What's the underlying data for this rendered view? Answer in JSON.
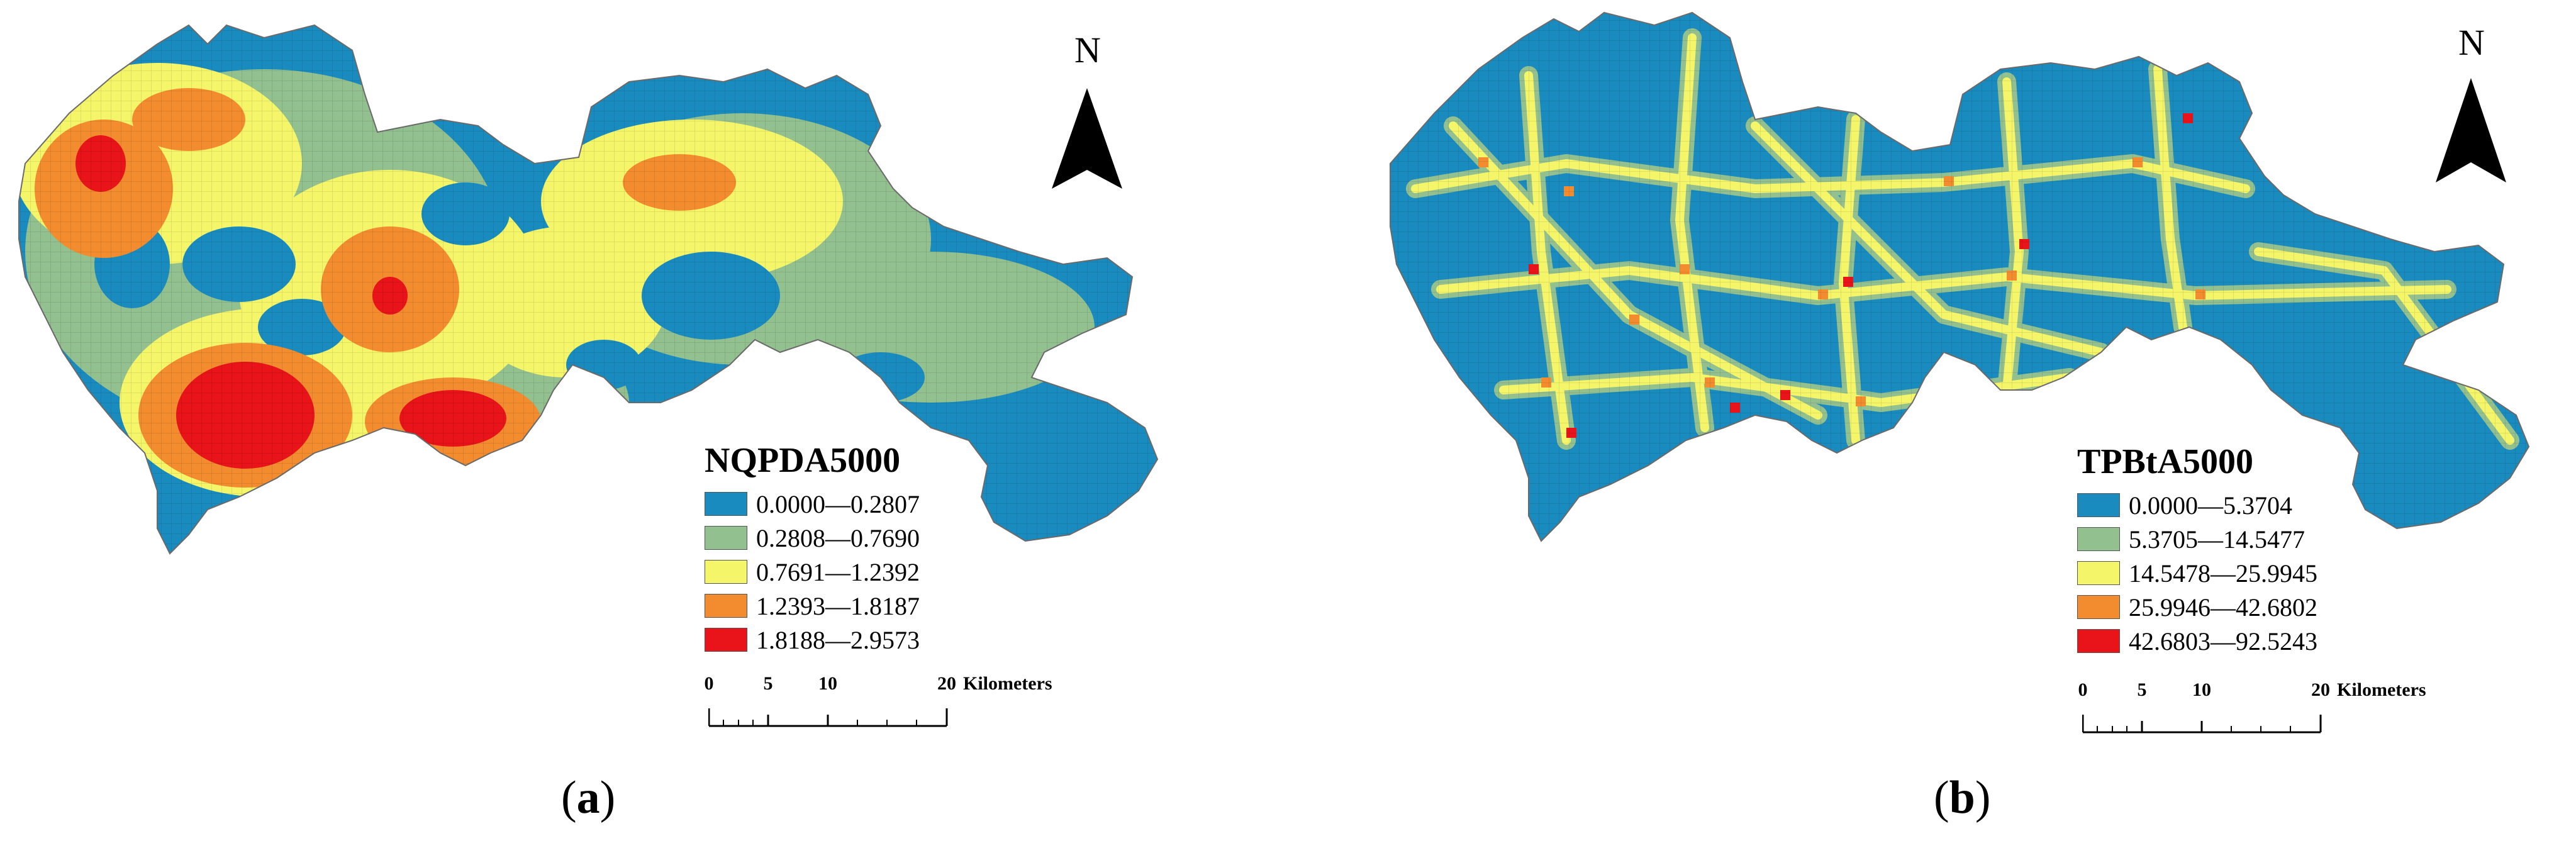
{
  "panels": [
    {
      "id": "a",
      "caption_letter": "a",
      "north_label": "N",
      "legend": {
        "title": "NQPDA5000",
        "classes": [
          {
            "label": "0.0000—0.2807",
            "color": "#1a8bbf"
          },
          {
            "label": "0.2808—0.7690",
            "color": "#93c08f"
          },
          {
            "label": "0.7691—1.2392",
            "color": "#f5f56a"
          },
          {
            "label": "1.2393—1.8187",
            "color": "#f28c2f"
          },
          {
            "label": "1.8188—2.9573",
            "color": "#e8141a"
          }
        ]
      },
      "scale": {
        "ticks": [
          "0",
          "5",
          "10",
          "20"
        ],
        "unit": "Kilometers"
      }
    },
    {
      "id": "b",
      "caption_letter": "b",
      "north_label": "N",
      "legend": {
        "title": "TPBtA5000",
        "classes": [
          {
            "label": "0.0000—5.3704",
            "color": "#1a8bbf"
          },
          {
            "label": "5.3705—14.5477",
            "color": "#93c08f"
          },
          {
            "label": "14.5478—25.9945",
            "color": "#f5f56a"
          },
          {
            "label": "25.9946—42.6802",
            "color": "#f28c2f"
          },
          {
            "label": "42.6803—92.5243",
            "color": "#e8141a"
          }
        ]
      },
      "scale": {
        "ticks": [
          "0",
          "5",
          "10",
          "20"
        ],
        "unit": "Kilometers"
      }
    }
  ]
}
